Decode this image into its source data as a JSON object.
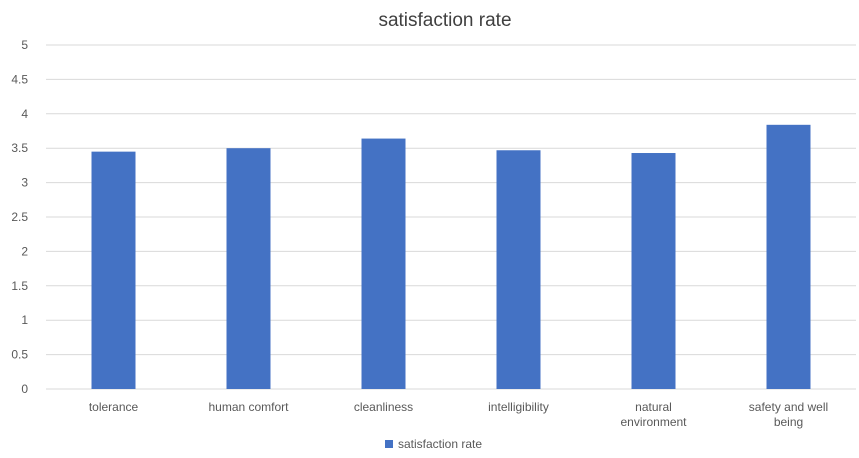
{
  "chart_data": {
    "type": "bar",
    "title": "satisfaction rate",
    "xlabel": "",
    "ylabel": "",
    "categories": [
      "tolerance",
      "human comfort",
      "cleanliness",
      "intelligibility",
      "natural environment",
      "safety and well being"
    ],
    "category_lines": [
      [
        "tolerance"
      ],
      [
        "human comfort"
      ],
      [
        "cleanliness"
      ],
      [
        "intelligibility"
      ],
      [
        "natural",
        "environment"
      ],
      [
        "safety and well",
        "being"
      ]
    ],
    "series": [
      {
        "name": "satisfaction rate",
        "values": [
          3.45,
          3.5,
          3.64,
          3.47,
          3.43,
          3.84
        ],
        "color": "#4472C4"
      }
    ],
    "ylim": [
      0,
      5
    ],
    "yticks": [
      "0",
      "0.5",
      "1",
      "1.5",
      "2",
      "2.5",
      "3",
      "3.5",
      "4",
      "4.5",
      "5"
    ],
    "grid": true,
    "legend": "bottom",
    "colors": {
      "bar": "#4472C4",
      "grid": "#d9d9d9",
      "text": "#595959",
      "title": "#404040"
    }
  }
}
